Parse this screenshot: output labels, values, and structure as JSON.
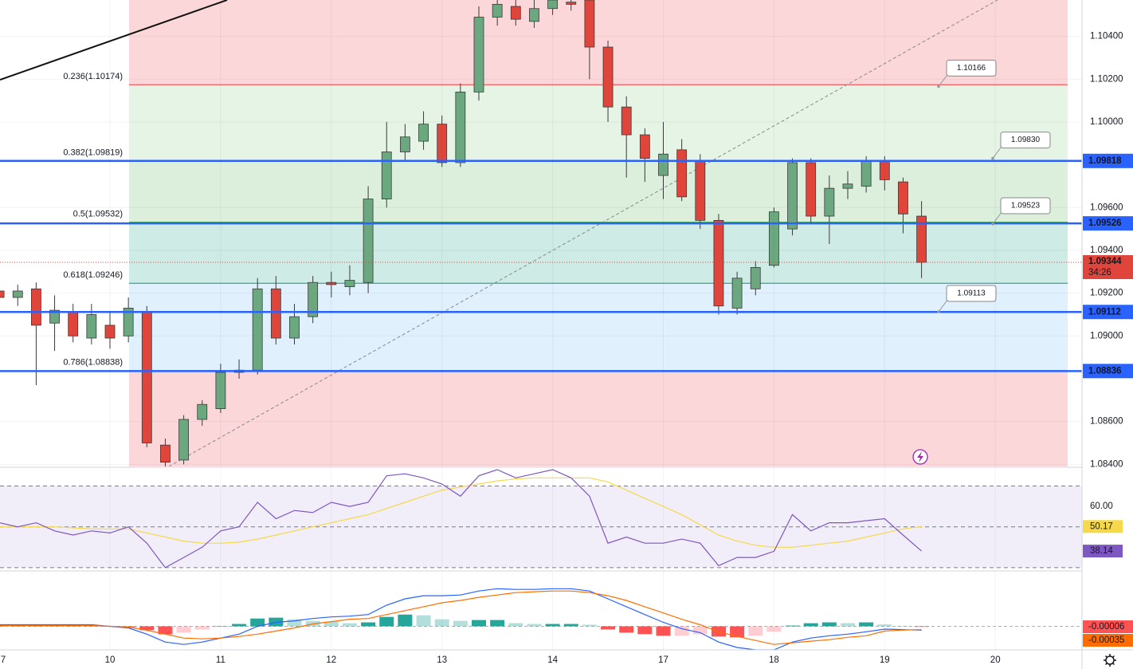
{
  "chart_data": [
    {
      "type": "candlestick",
      "categories": [
        "7",
        null,
        null,
        null,
        null,
        null,
        "10",
        null,
        null,
        null,
        null,
        null,
        "11",
        null,
        null,
        null,
        null,
        null,
        "12",
        null,
        null,
        null,
        null,
        null,
        "13",
        null,
        null,
        null,
        null,
        null,
        "14",
        null,
        null,
        null,
        null,
        null,
        "17",
        null,
        null,
        null,
        null,
        null,
        "18",
        null,
        null,
        null,
        null,
        null,
        "19",
        null,
        null,
        null,
        null,
        null,
        "20"
      ],
      "open": [
        1.0921,
        1.0918,
        1.0922,
        1.0906,
        1.0911,
        1.0899,
        1.0905,
        1.09,
        1.0911,
        1.0849,
        1.0842,
        1.0861,
        1.0866,
        1.0883,
        1.0884,
        1.0922,
        1.0899,
        1.0909,
        1.0925,
        1.0923,
        1.0925,
        1.0964,
        1.0986,
        1.0991,
        1.0999,
        1.0981,
        1.1014,
        1.1049,
        1.1054,
        1.1047,
        1.1053,
        1.1056,
        1.1057,
        1.1035,
        1.1007,
        1.0994,
        1.0975,
        1.0987,
        1.0982,
        1.0954,
        1.0913,
        1.0922,
        1.0933,
        1.095,
        1.0981,
        1.0956,
        1.0969,
        1.097,
        1.0982,
        1.0972,
        1.0956,
        null,
        null,
        null,
        null
      ],
      "high": [
        1.0925,
        1.0924,
        1.0925,
        1.0919,
        1.0915,
        1.0915,
        1.0911,
        1.0918,
        1.0914,
        1.0852,
        1.0863,
        1.087,
        1.0887,
        1.0889,
        1.0927,
        1.0928,
        1.0915,
        1.0928,
        1.093,
        1.0933,
        1.097,
        1.1,
        1.0999,
        1.1005,
        1.1003,
        1.1018,
        1.1054,
        1.1057,
        1.1057,
        1.1057,
        1.1057,
        1.1057,
        1.1057,
        1.1038,
        1.1012,
        1.0997,
        1.1,
        1.0992,
        1.0985,
        1.0957,
        1.093,
        1.0935,
        1.096,
        1.0983,
        1.0983,
        1.0975,
        1.0977,
        1.0984,
        1.0984,
        1.0974,
        1.0963,
        null,
        null,
        null,
        null
      ],
      "low": [
        1.0915,
        1.0914,
        1.0877,
        1.0893,
        1.0897,
        1.0896,
        1.0894,
        1.0897,
        1.0848,
        1.0839,
        1.084,
        1.0858,
        1.0864,
        1.088,
        1.0882,
        1.0896,
        1.0896,
        1.0906,
        1.0918,
        1.0919,
        1.092,
        1.096,
        1.0982,
        1.0987,
        1.0979,
        1.0979,
        1.101,
        1.1045,
        1.1045,
        1.1044,
        1.105,
        1.1052,
        1.102,
        1.1,
        1.0974,
        1.0972,
        1.0964,
        1.0963,
        1.095,
        1.091,
        1.091,
        1.0919,
        1.0932,
        1.0947,
        1.0953,
        1.0943,
        1.0964,
        1.0967,
        1.0968,
        1.0948,
        1.0927,
        null,
        null,
        null,
        null
      ],
      "close": [
        1.0918,
        1.0921,
        1.0905,
        1.0912,
        1.09,
        1.091,
        1.0899,
        1.0913,
        1.085,
        1.0841,
        1.0861,
        1.0868,
        1.0883,
        1.0884,
        1.0922,
        1.0899,
        1.0909,
        1.0925,
        1.0924,
        1.0926,
        1.0964,
        1.0986,
        1.0993,
        1.0999,
        1.0981,
        1.1014,
        1.1049,
        1.1055,
        1.1048,
        1.1053,
        1.1057,
        1.1055,
        1.1035,
        1.1007,
        1.0994,
        1.0983,
        1.0985,
        1.0965,
        1.0954,
        1.0914,
        1.0927,
        1.0932,
        1.0958,
        1.0981,
        1.0956,
        1.0969,
        1.0971,
        1.0982,
        1.0973,
        1.0957,
        1.09344,
        null,
        null,
        null,
        null
      ],
      "up_color": "#6ba880",
      "down_color": "#e0453b",
      "wick_color": "#3a3a3a",
      "ylim": [
        1.0839,
        1.1057
      ],
      "yticks": [
        {
          "value": 1.104,
          "label": "1.10400"
        },
        {
          "value": 1.102,
          "label": "1.10200"
        },
        {
          "value": 1.1,
          "label": "1.10000"
        },
        {
          "value": 1.096,
          "label": "1.09600"
        },
        {
          "value": 1.094,
          "label": "1.09400"
        },
        {
          "value": 1.092,
          "label": "1.09200"
        },
        {
          "value": 1.09,
          "label": "1.09000"
        },
        {
          "value": 1.086,
          "label": "1.08600"
        },
        {
          "value": 1.084,
          "label": "1.08400"
        }
      ],
      "grid": true,
      "fib_levels": [
        {
          "ratio": 0.236,
          "price": 1.10174,
          "label": "0.236(1.10174)",
          "color": "#f23645"
        },
        {
          "ratio": 0.382,
          "price": 1.09819,
          "label": "0.382(1.09819)",
          "color": "#81c784"
        },
        {
          "ratio": 0.5,
          "price": 1.09532,
          "label": "0.5(1.09532)",
          "color": "#4caf50"
        },
        {
          "ratio": 0.618,
          "price": 1.09246,
          "label": "0.618(1.09246)",
          "color": "#089981"
        },
        {
          "ratio": 0.786,
          "price": 1.08838,
          "label": "0.786(1.08838)",
          "color": "#64b5f6"
        }
      ],
      "fib_zone_colors": [
        "rgba(242,54,69,0.2)",
        "rgba(129,199,132,0.2)",
        "rgba(76,175,80,0.2)",
        "rgba(8,153,129,0.2)",
        "rgba(100,181,246,0.2)",
        "rgba(242,54,69,0.2)"
      ],
      "horizontal_lines": [
        1.09818,
        1.09526,
        1.09112,
        1.08836
      ],
      "line_color": "#2962ff",
      "callouts": [
        {
          "value": 1.10166,
          "label": "1.10166"
        },
        {
          "value": 1.0983,
          "label": "1.09830"
        },
        {
          "value": 1.09523,
          "label": "1.09523"
        },
        {
          "value": 1.09113,
          "label": "1.09113"
        }
      ],
      "countdown": "34:26"
    },
    {
      "type": "line",
      "ylim": [
        28.8,
        78.8
      ],
      "yticks": [
        {
          "value": 60,
          "label": "60.00"
        }
      ],
      "levels": [
        70,
        50,
        30
      ],
      "series": [
        {
          "color": "#7e57c2",
          "values": [
            52,
            50,
            52,
            48,
            46,
            48,
            47,
            50,
            42,
            30,
            35,
            40,
            48,
            50,
            62,
            54,
            58,
            57,
            62,
            60,
            62,
            75,
            76,
            74,
            71,
            65,
            75,
            78,
            74,
            76,
            78,
            74,
            65,
            42,
            45,
            42,
            42,
            44,
            42,
            31,
            35,
            35,
            38,
            56,
            48,
            52,
            52,
            53,
            54,
            46,
            38.14
          ]
        },
        {
          "color": "#f5d94a",
          "values": [
            50,
            50,
            50,
            50,
            49.5,
            49,
            49,
            49,
            47,
            45,
            43,
            42,
            42,
            42.5,
            44,
            46,
            48,
            50,
            52,
            54,
            56,
            59,
            62,
            65,
            68,
            69.5,
            71,
            72.5,
            73.5,
            74,
            74,
            74,
            74,
            72,
            68,
            64,
            60,
            56,
            51,
            46,
            43,
            41,
            40,
            40,
            41,
            42,
            43,
            45,
            47,
            49,
            50.17
          ]
        }
      ]
    },
    {
      "type": "macd",
      "ylim": [
        -0.0025,
        0.0058
      ],
      "histogram": {
        "colors": [
          "#26a69a",
          "#b2dfdb",
          "#ffcdd2",
          "#ff5252"
        ],
        "values": [
          9e-05,
          9e-05,
          9e-05,
          9e-05,
          9e-05,
          9e-05,
          0,
          -9e-05,
          -0.00041,
          -0.00084,
          -0.00067,
          -0.00034,
          0,
          0.00025,
          0.00083,
          0.00092,
          0.00075,
          0.00058,
          0.0005,
          0.00033,
          0.00042,
          0.001,
          0.00125,
          0.00117,
          0.00075,
          0.00058,
          0.00067,
          0.00067,
          0.00034,
          0.00025,
          0.00025,
          0.00025,
          0.00017,
          -0.00033,
          -0.00067,
          -0.00083,
          -0.001,
          -0.001,
          -0.00084,
          -0.00109,
          -0.00117,
          -0.001,
          -0.00058,
          8e-05,
          0.00033,
          0.00042,
          0.00034,
          0.00042,
          0.0002,
          5e-05,
          -6e-05
        ]
      },
      "series": [
        {
          "color": "#2962ff",
          "values": [
            0.00017,
            0.00017,
            0.00017,
            0.00017,
            0.00017,
            0.00017,
            0,
            -0.00017,
            -0.00083,
            -0.00167,
            -0.00192,
            -0.00167,
            -0.00125,
            -0.00083,
            0,
            0.00042,
            0.00058,
            0.00083,
            0.001,
            0.00108,
            0.00125,
            0.00225,
            0.00292,
            0.00325,
            0.00325,
            0.00333,
            0.00375,
            0.004,
            0.00392,
            0.00392,
            0.004,
            0.004,
            0.00375,
            0.00292,
            0.00208,
            0.00125,
            0.00042,
            -0.00025,
            -0.00067,
            -0.00167,
            -0.00225,
            -0.0025,
            -0.0025,
            -0.00167,
            -0.00125,
            -0.001,
            -0.00083,
            -0.00058,
            -0.0003,
            -0.00035,
            -0.00041
          ]
        },
        {
          "color": "#ff6d00",
          "values": [
            8e-05,
            8e-05,
            8e-05,
            8e-05,
            8e-05,
            8e-05,
            0,
            -8e-05,
            -0.00042,
            -0.00083,
            -0.00125,
            -0.00133,
            -0.00125,
            -0.00108,
            -0.00083,
            -0.0005,
            -0.00017,
            0.00025,
            0.0005,
            0.00075,
            0.00083,
            0.00125,
            0.00167,
            0.00208,
            0.0025,
            0.00275,
            0.00308,
            0.00333,
            0.00358,
            0.00367,
            0.00375,
            0.00375,
            0.00358,
            0.00325,
            0.00275,
            0.00208,
            0.00142,
            0.00075,
            0.00017,
            -0.00058,
            -0.00108,
            -0.0015,
            -0.00192,
            -0.00175,
            -0.00158,
            -0.00142,
            -0.00117,
            -0.001,
            -0.0005,
            -0.0004,
            -0.00035
          ]
        }
      ]
    }
  ]
}
